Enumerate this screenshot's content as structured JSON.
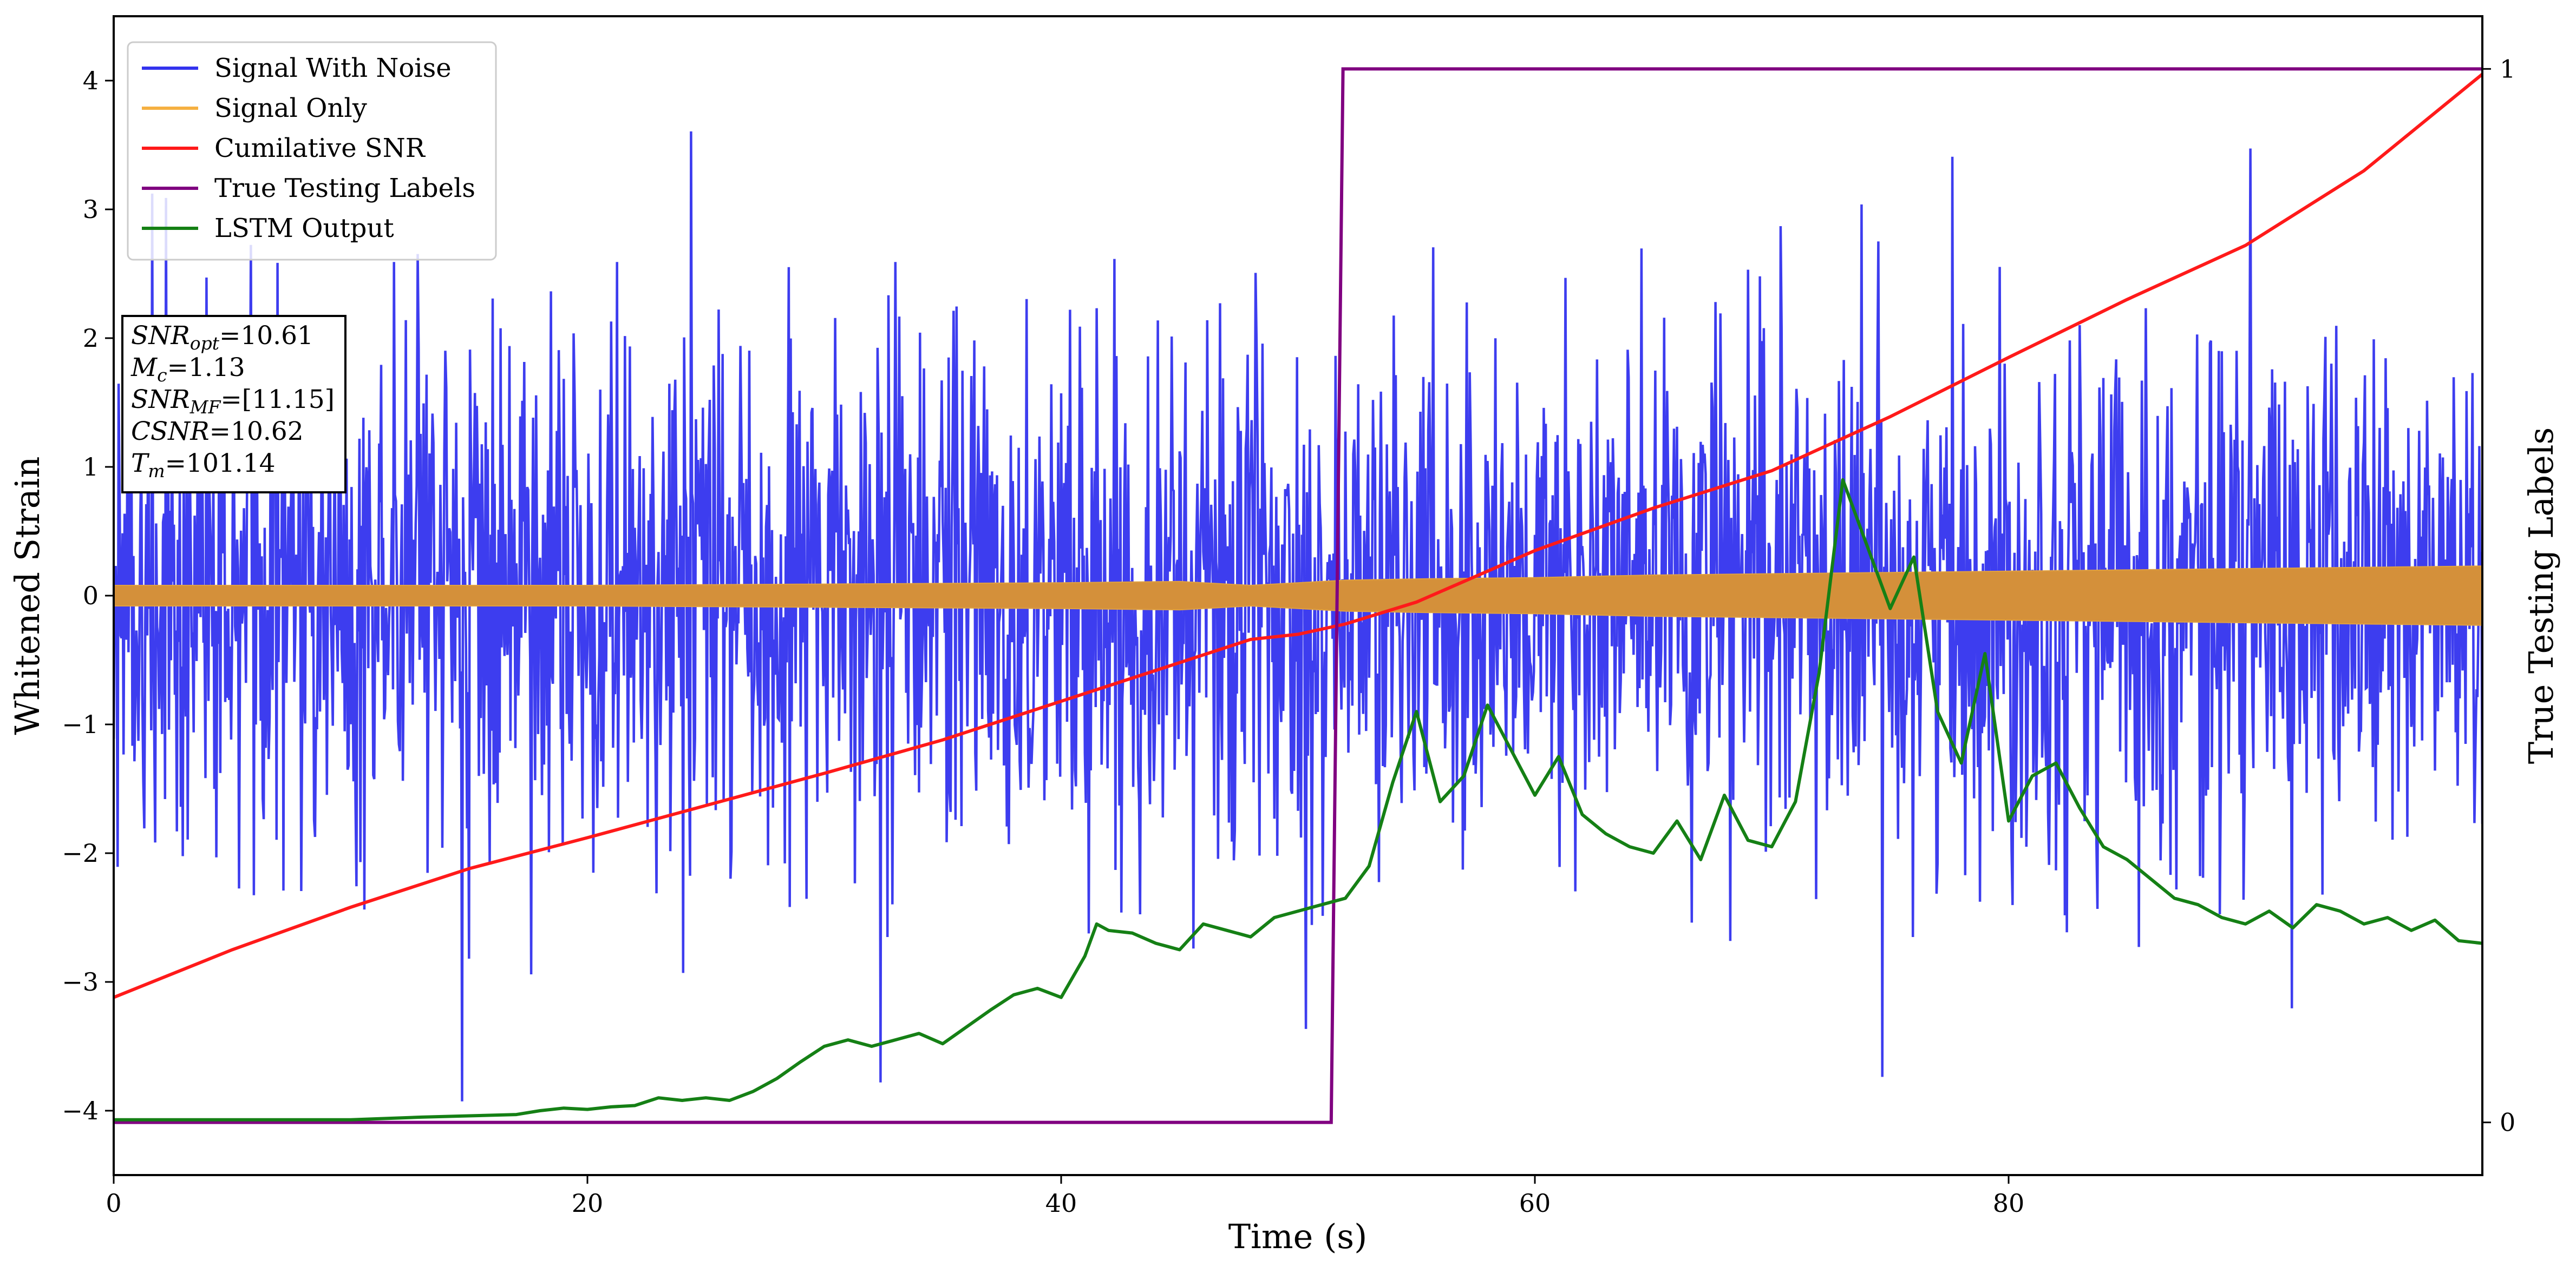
{
  "chart_data": {
    "type": "line",
    "xlabel": "Time (s)",
    "ylabel": "Whitened Strain",
    "y2label": "True Testing Labels",
    "xlim": [
      0,
      100
    ],
    "ylim": [
      -4.5,
      4.5
    ],
    "y2lim": [
      -0.05,
      1.05
    ],
    "xticks": [
      0,
      20,
      40,
      60,
      80
    ],
    "yticks": [
      -4,
      -3,
      -2,
      -1,
      0,
      1,
      2,
      3,
      4
    ],
    "y2ticks": [
      0,
      1
    ],
    "legend_position": "top-left",
    "legend": [
      {
        "label": "Signal With Noise",
        "color": "#3333ee"
      },
      {
        "label": "Signal Only",
        "color": "#f5b041"
      },
      {
        "label": "Cumilative SNR",
        "color": "#ff1a1a"
      },
      {
        "label": "True Testing Labels",
        "color": "#800080"
      },
      {
        "label": "LSTM Output",
        "color": "#158015"
      }
    ],
    "annotation": [
      {
        "base": "SNR",
        "sub": "opt",
        "value": "=10.61"
      },
      {
        "base": "M",
        "sub": "c",
        "value": "=1.13"
      },
      {
        "base": "SNR",
        "sub": "MF",
        "value": "=[11.15]"
      },
      {
        "base": "CSNR",
        "sub": "",
        "value": "=10.62"
      },
      {
        "base": "T",
        "sub": "m",
        "value": "=101.14"
      }
    ],
    "series": [
      {
        "name": "Signal With Noise",
        "axis": "left",
        "style": "noise",
        "description_envelope": {
          "x": [
            0,
            100
          ],
          "typical_high": [
            2.8,
            2.9
          ],
          "typical_low": [
            -2.6,
            -2.7
          ],
          "max": 4.1,
          "min": -4.0
        }
      },
      {
        "name": "Signal Only",
        "axis": "left",
        "style": "band",
        "x": [
          0,
          10,
          20,
          30,
          40,
          45,
          48,
          50,
          52,
          55,
          60,
          65,
          70,
          75,
          80,
          85,
          90,
          95,
          100
        ],
        "amplitude": [
          0.08,
          0.08,
          0.08,
          0.09,
          0.1,
          0.11,
          0.08,
          0.1,
          0.12,
          0.13,
          0.14,
          0.16,
          0.17,
          0.18,
          0.19,
          0.2,
          0.21,
          0.22,
          0.23
        ]
      },
      {
        "name": "Cumilative SNR",
        "axis": "left",
        "x": [
          0,
          5,
          10,
          15,
          20,
          25,
          30,
          35,
          40,
          45,
          48,
          50,
          52,
          55,
          60,
          65,
          70,
          75,
          80,
          85,
          90,
          95,
          100
        ],
        "y": [
          -3.12,
          -2.75,
          -2.42,
          -2.12,
          -1.88,
          -1.63,
          -1.38,
          -1.12,
          -0.82,
          -0.52,
          -0.34,
          -0.3,
          -0.22,
          -0.05,
          0.35,
          0.68,
          0.97,
          1.39,
          1.85,
          2.3,
          2.72,
          3.3,
          4.05
        ]
      },
      {
        "name": "True Testing Labels",
        "axis": "right",
        "x": [
          0,
          51.4,
          51.9,
          100
        ],
        "y": [
          0,
          0,
          1,
          1
        ]
      },
      {
        "name": "LSTM Output",
        "axis": "left",
        "x": [
          0,
          10,
          13,
          15,
          17,
          18,
          19,
          20,
          21,
          22,
          23,
          24,
          25,
          26,
          27,
          28,
          29,
          30,
          31,
          32,
          33,
          34,
          35,
          36,
          37,
          38,
          39,
          40,
          41,
          41.5,
          42,
          43,
          44,
          45,
          46,
          47,
          48,
          49,
          50,
          51,
          52,
          53,
          54,
          55,
          56,
          57,
          58,
          59,
          60,
          61,
          62,
          63,
          64,
          65,
          66,
          67,
          68,
          69,
          70,
          71,
          72,
          73,
          74,
          75,
          76,
          77,
          78,
          79,
          80,
          81,
          82,
          83,
          84,
          85,
          86,
          87,
          88,
          89,
          90,
          91,
          92,
          93,
          94,
          95,
          96,
          97,
          98,
          99,
          100
        ],
        "y": [
          -4.07,
          -4.07,
          -4.05,
          -4.04,
          -4.03,
          -4.0,
          -3.98,
          -3.99,
          -3.97,
          -3.96,
          -3.9,
          -3.92,
          -3.9,
          -3.92,
          -3.85,
          -3.75,
          -3.62,
          -3.5,
          -3.45,
          -3.5,
          -3.45,
          -3.4,
          -3.48,
          -3.35,
          -3.22,
          -3.1,
          -3.05,
          -3.12,
          -2.8,
          -2.55,
          -2.6,
          -2.62,
          -2.7,
          -2.75,
          -2.55,
          -2.6,
          -2.65,
          -2.5,
          -2.45,
          -2.4,
          -2.35,
          -2.1,
          -1.45,
          -0.9,
          -1.6,
          -1.4,
          -0.85,
          -1.2,
          -1.55,
          -1.25,
          -1.7,
          -1.85,
          -1.95,
          -2.0,
          -1.75,
          -2.05,
          -1.55,
          -1.9,
          -1.95,
          -1.6,
          -0.6,
          0.9,
          0.4,
          -0.1,
          0.3,
          -0.9,
          -1.3,
          -0.45,
          -1.75,
          -1.4,
          -1.3,
          -1.65,
          -1.95,
          -2.05,
          -2.2,
          -2.35,
          -2.4,
          -2.5,
          -2.55,
          -2.45,
          -2.58,
          -2.4,
          -2.45,
          -2.55,
          -2.5,
          -2.6,
          -2.52,
          -2.68,
          -2.7
        ]
      }
    ]
  }
}
